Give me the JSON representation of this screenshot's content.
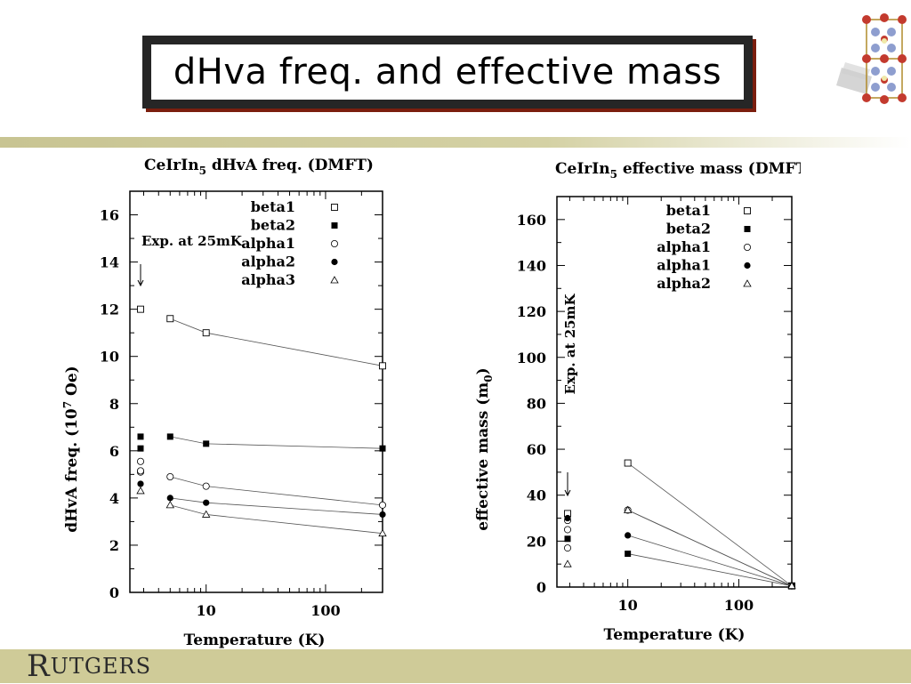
{
  "slide": {
    "title": "dHva freq. and effective mass",
    "logo_prefix": "R",
    "logo_rest": "UTGERS"
  },
  "colors": {
    "band": "#cfcb98",
    "title_border": "#262626",
    "title_shadow": "#7b1e0e"
  },
  "icons": {
    "crystal": "crystal-structure-icon"
  },
  "chart_data": [
    {
      "type": "scatter",
      "title_main": "CeIrIn",
      "title_sub": "5",
      "title_rest": " dHvA freq. (DMFT)",
      "xlabel": "Temperature (K)",
      "ylabel_main": "dHvA freq. (10",
      "ylabel_sup": "7",
      "ylabel_rest": " Oe)",
      "xscale": "log",
      "xlim": [
        2.3,
        300
      ],
      "ylim": [
        0,
        17
      ],
      "xticks": [
        "10",
        "100"
      ],
      "yticks": [
        "0",
        "2",
        "4",
        "6",
        "8",
        "10",
        "12",
        "14",
        "16"
      ],
      "annotation": "Exp. at 25mK",
      "series": [
        {
          "name": "beta1",
          "marker": "square-open",
          "exp": [
            12.0
          ],
          "x": [
            5,
            10,
            300
          ],
          "y": [
            11.6,
            11.0,
            9.6
          ]
        },
        {
          "name": "beta2",
          "marker": "square-filled",
          "exp": [
            6.6,
            6.1
          ],
          "x": [
            5,
            10,
            300
          ],
          "y": [
            6.6,
            6.3,
            6.1
          ]
        },
        {
          "name": "alpha1",
          "marker": "circle-open",
          "exp": [
            5.55,
            5.1,
            5.15
          ],
          "x": [
            5,
            10,
            300
          ],
          "y": [
            4.9,
            4.5,
            3.7
          ]
        },
        {
          "name": "alpha2",
          "marker": "circle-filled",
          "exp": [
            4.6
          ],
          "x": [
            5,
            10,
            300
          ],
          "y": [
            4.0,
            3.8,
            3.3
          ]
        },
        {
          "name": "alpha3",
          "marker": "triangle-open",
          "exp": [
            4.3
          ],
          "x": [
            5,
            10,
            300
          ],
          "y": [
            3.7,
            3.3,
            2.5
          ]
        }
      ]
    },
    {
      "type": "scatter",
      "title_main": "CeIrIn",
      "title_sub": "5",
      "title_rest": " effective mass (DMFT)",
      "xlabel": "Temperature (K)",
      "ylabel_main": "effective mass (m",
      "ylabel_sub": "0",
      "ylabel_rest": ")",
      "xscale": "log",
      "xlim": [
        2.3,
        300
      ],
      "ylim": [
        0,
        170
      ],
      "xticks": [
        "10",
        "100"
      ],
      "yticks": [
        "0",
        "20",
        "40",
        "60",
        "80",
        "100",
        "120",
        "140",
        "160"
      ],
      "annotation": "Exp. at 25mK",
      "series": [
        {
          "name": "beta1",
          "marker": "square-open",
          "exp": [
            32
          ],
          "x": [
            10,
            300
          ],
          "y": [
            54,
            0.5
          ]
        },
        {
          "name": "beta2",
          "marker": "square-filled",
          "exp": [
            21
          ],
          "x": [
            10,
            300
          ],
          "y": [
            14.5,
            0.5
          ]
        },
        {
          "name": "alpha1",
          "marker": "circle-open",
          "exp": [
            29,
            25,
            17
          ],
          "x": [
            10,
            300
          ],
          "y": [
            33.5,
            0.5
          ]
        },
        {
          "name": "alpha1",
          "marker": "circle-filled",
          "exp": [
            30
          ],
          "x": [
            10,
            300
          ],
          "y": [
            22.5,
            0.5
          ]
        },
        {
          "name": "alpha2",
          "marker": "triangle-open",
          "exp": [
            10
          ],
          "x": [
            10,
            300
          ],
          "y": [
            33.5,
            0.5
          ]
        }
      ]
    }
  ]
}
